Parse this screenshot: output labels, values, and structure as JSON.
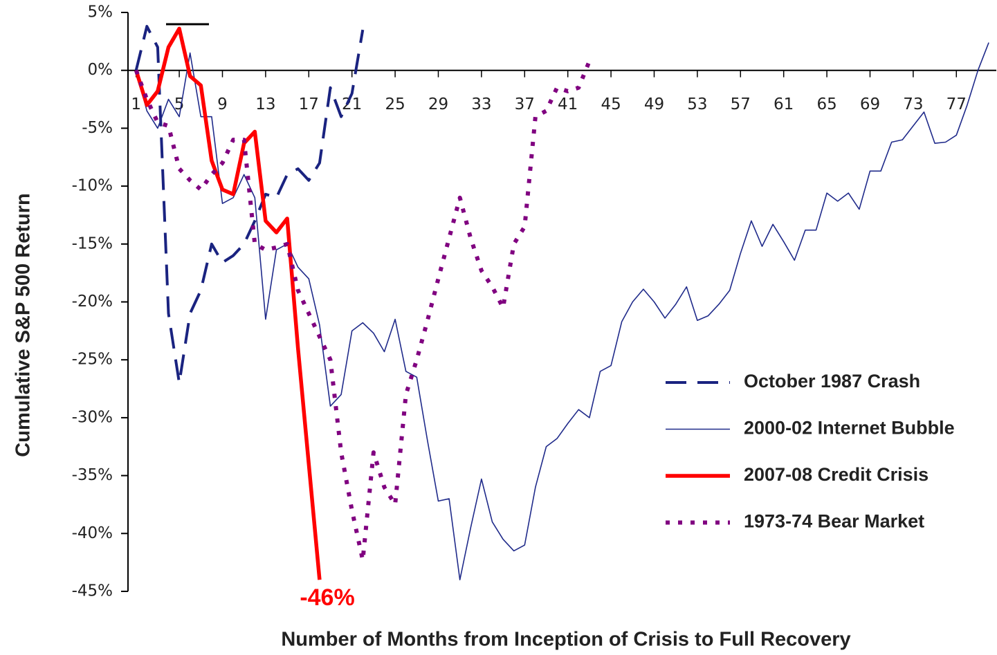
{
  "chart_data": {
    "type": "line",
    "y_label": "Cumulative S&P 500 Return",
    "x_label": "Number of Months from Inception of Crisis to Full Recovery",
    "annotation": "-46%",
    "xlim": [
      0.25,
      80.7
    ],
    "ylim": [
      -45,
      5
    ],
    "xticks": [
      1,
      5,
      9,
      13,
      17,
      21,
      25,
      29,
      33,
      37,
      41,
      45,
      49,
      53,
      57,
      61,
      65,
      69,
      73,
      77
    ],
    "yticks": [
      {
        "value": 5,
        "label": "5%"
      },
      {
        "value": 0,
        "label": "0%"
      },
      {
        "value": -5,
        "label": "-5%"
      },
      {
        "value": -10,
        "label": "-10%"
      },
      {
        "value": -15,
        "label": "-15%"
      },
      {
        "value": -20,
        "label": "-20%"
      },
      {
        "value": -25,
        "label": "-25%"
      },
      {
        "value": -30,
        "label": "-30%"
      },
      {
        "value": -35,
        "label": "-35%"
      },
      {
        "value": -40,
        "label": "-40%"
      },
      {
        "value": -45,
        "label": "-45%"
      }
    ],
    "series": [
      {
        "name": "October 1987 Crash",
        "color": "#1a2380",
        "style": "dashed",
        "x": [
          1,
          2,
          3,
          4,
          5,
          6,
          7,
          8,
          9,
          10,
          11,
          12,
          13,
          14,
          15,
          16,
          17,
          18,
          19,
          20,
          21,
          22
        ],
        "values": [
          0,
          3.8,
          2,
          -21,
          -27,
          -21,
          -19,
          -15,
          -16.6,
          -16,
          -15,
          -13,
          -10.7,
          -11,
          -9,
          -8.5,
          -9.5,
          -8,
          -1.5,
          -4,
          -2,
          3.5
        ]
      },
      {
        "name": "2000-02 Internet Bubble",
        "color": "#1f2a8a",
        "style": "thin",
        "x": [
          1,
          2,
          3,
          4,
          5,
          6,
          7,
          8,
          9,
          10,
          11,
          12,
          13,
          14,
          15,
          16,
          17,
          18,
          19,
          20,
          21,
          22,
          23,
          24,
          25,
          26,
          27,
          28,
          29,
          30,
          31,
          32,
          33,
          34,
          35,
          36,
          37,
          38,
          39,
          40,
          41,
          42,
          43,
          44,
          45,
          46,
          47,
          48,
          49,
          50,
          51,
          52,
          53,
          54,
          55,
          56,
          57,
          58,
          59,
          60,
          61,
          62,
          63,
          64,
          65,
          66,
          67,
          68,
          69,
          70,
          71,
          72,
          73,
          74,
          75,
          76,
          77,
          78,
          79,
          80
        ],
        "values": [
          0,
          -3.5,
          -5,
          -2.5,
          -4,
          1.5,
          -4,
          -4,
          -11.5,
          -11,
          -9,
          -11,
          -21.5,
          -15.5,
          -15,
          -17,
          -18,
          -22,
          -29,
          -28,
          -22.5,
          -21.8,
          -22.7,
          -24.3,
          -21.5,
          -26,
          -26.5,
          -32,
          -37.2,
          -37,
          -44,
          -39.5,
          -35.3,
          -39,
          -40.5,
          -41.5,
          -41,
          -36,
          -32.5,
          -31.8,
          -30.5,
          -29.3,
          -30,
          -26,
          -25.5,
          -21.7,
          -20,
          -18.9,
          -20,
          -21.4,
          -20.2,
          -18.7,
          -21.6,
          -21.2,
          -20.2,
          -19,
          -15.8,
          -13,
          -15.2,
          -13.3,
          -14.8,
          -16.4,
          -13.8,
          -13.8,
          -10.6,
          -11.3,
          -10.6,
          -12,
          -8.7,
          -8.7,
          -6.2,
          -6,
          -4.8,
          -3.6,
          -6.3,
          -6.2,
          -5.6,
          -3,
          0,
          2.4
        ]
      },
      {
        "name": "2007-08 Credit Crisis",
        "color": "#ff0000",
        "style": "thick",
        "x": [
          1,
          2,
          3,
          4,
          5,
          6,
          7,
          8,
          9,
          10,
          11,
          12,
          13,
          14,
          15,
          16,
          17,
          18
        ],
        "values": [
          0,
          -3,
          -1.8,
          2,
          3.6,
          -0.5,
          -1.3,
          -7.8,
          -10.3,
          -10.7,
          -6.3,
          -5.3,
          -13,
          -14,
          -12.8,
          -24,
          -34,
          -44
        ]
      },
      {
        "name": "1973-74 Bear Market",
        "color": "#800080",
        "style": "dotted",
        "x": [
          1,
          2,
          3,
          4,
          5,
          6,
          7,
          8,
          9,
          10,
          11,
          12,
          13,
          14,
          15,
          16,
          17,
          18,
          19,
          20,
          21,
          22,
          23,
          24,
          25,
          26,
          27,
          28,
          29,
          30,
          31,
          32,
          33,
          34,
          35,
          36,
          37,
          38,
          39,
          40,
          41,
          42,
          43
        ],
        "values": [
          0,
          -2.5,
          -4.5,
          -4.8,
          -8.5,
          -9.5,
          -10.3,
          -9,
          -8,
          -6,
          -6,
          -15,
          -15.5,
          -15.3,
          -15,
          -19,
          -21,
          -23,
          -25,
          -33,
          -38,
          -42.3,
          -33,
          -36,
          -37.5,
          -28,
          -25,
          -21.6,
          -18,
          -14.5,
          -11,
          -14.5,
          -17.3,
          -18.7,
          -20.5,
          -15,
          -13.5,
          -4,
          -3.5,
          -1.5,
          -1.8,
          -1.5,
          0.8
        ]
      }
    ]
  }
}
